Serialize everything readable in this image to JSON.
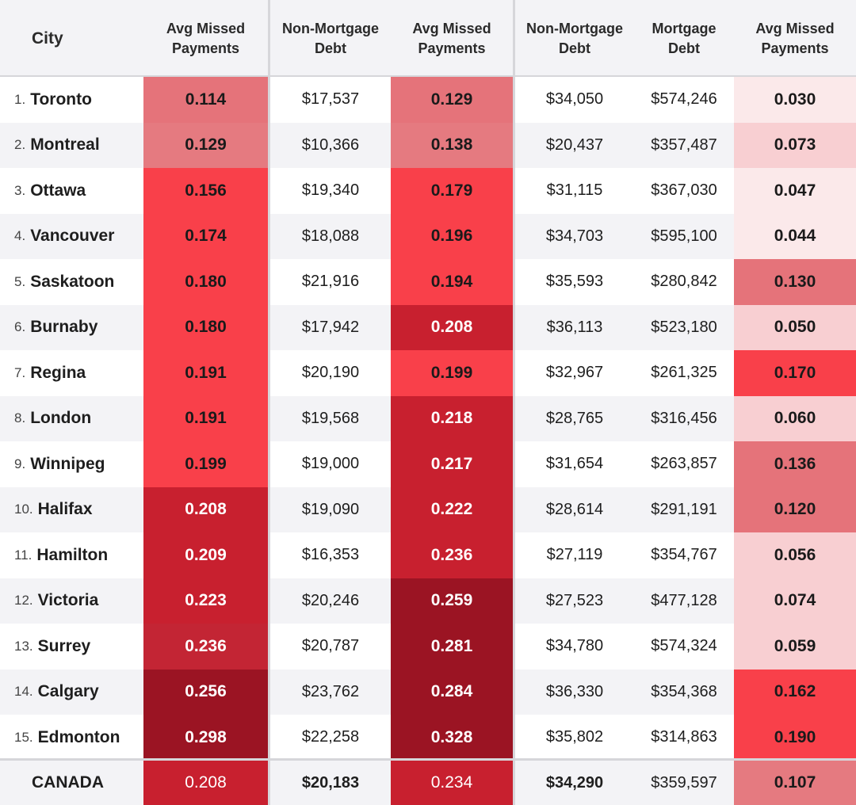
{
  "table": {
    "headers": {
      "city": "City",
      "avg_missed_1": [
        "Avg Missed",
        "Payments"
      ],
      "non_mortgage_1": [
        "Non-Mortgage",
        "Debt"
      ],
      "avg_missed_2": [
        "Avg Missed",
        "Payments"
      ],
      "non_mortgage_2": [
        "Non-Mortgage",
        "Debt"
      ],
      "mortgage": [
        "Mortgage",
        "Debt"
      ],
      "avg_missed_3": [
        "Avg Missed",
        "Payments"
      ]
    },
    "rows": [
      {
        "rank": "1.",
        "city": "Toronto",
        "amp1": "0.114",
        "nmd1": "$17,537",
        "amp2": "0.129",
        "nmd2": "$34,050",
        "md": "$574,246",
        "amp3": "0.030"
      },
      {
        "rank": "2.",
        "city": "Montreal",
        "amp1": "0.129",
        "nmd1": "$10,366",
        "amp2": "0.138",
        "nmd2": "$20,437",
        "md": "$357,487",
        "amp3": "0.073"
      },
      {
        "rank": "3.",
        "city": "Ottawa",
        "amp1": "0.156",
        "nmd1": "$19,340",
        "amp2": "0.179",
        "nmd2": "$31,115",
        "md": "$367,030",
        "amp3": "0.047"
      },
      {
        "rank": "4.",
        "city": "Vancouver",
        "amp1": "0.174",
        "nmd1": "$18,088",
        "amp2": "0.196",
        "nmd2": "$34,703",
        "md": "$595,100",
        "amp3": "0.044"
      },
      {
        "rank": "5.",
        "city": "Saskatoon",
        "amp1": "0.180",
        "nmd1": "$21,916",
        "amp2": "0.194",
        "nmd2": "$35,593",
        "md": "$280,842",
        "amp3": "0.130"
      },
      {
        "rank": "6.",
        "city": "Burnaby",
        "amp1": "0.180",
        "nmd1": "$17,942",
        "amp2": "0.208",
        "nmd2": "$36,113",
        "md": "$523,180",
        "amp3": "0.050"
      },
      {
        "rank": "7.",
        "city": "Regina",
        "amp1": "0.191",
        "nmd1": "$20,190",
        "amp2": "0.199",
        "nmd2": "$32,967",
        "md": "$261,325",
        "amp3": "0.170"
      },
      {
        "rank": "8.",
        "city": "London",
        "amp1": "0.191",
        "nmd1": "$19,568",
        "amp2": "0.218",
        "nmd2": "$28,765",
        "md": "$316,456",
        "amp3": "0.060"
      },
      {
        "rank": "9.",
        "city": "Winnipeg",
        "amp1": "0.199",
        "nmd1": "$19,000",
        "amp2": "0.217",
        "nmd2": "$31,654",
        "md": "$263,857",
        "amp3": "0.136"
      },
      {
        "rank": "10.",
        "city": "Halifax",
        "amp1": "0.208",
        "nmd1": "$19,090",
        "amp2": "0.222",
        "nmd2": "$28,614",
        "md": "$291,191",
        "amp3": "0.120"
      },
      {
        "rank": "11.",
        "city": "Hamilton",
        "amp1": "0.209",
        "nmd1": "$16,353",
        "amp2": "0.236",
        "nmd2": "$27,119",
        "md": "$354,767",
        "amp3": "0.056"
      },
      {
        "rank": "12.",
        "city": "Victoria",
        "amp1": "0.223",
        "nmd1": "$20,246",
        "amp2": "0.259",
        "nmd2": "$27,523",
        "md": "$477,128",
        "amp3": "0.074"
      },
      {
        "rank": "13.",
        "city": "Surrey",
        "amp1": "0.236",
        "nmd1": "$20,787",
        "amp2": "0.281",
        "nmd2": "$34,780",
        "md": "$574,324",
        "amp3": "0.059"
      },
      {
        "rank": "14.",
        "city": "Calgary",
        "amp1": "0.256",
        "nmd1": "$23,762",
        "amp2": "0.284",
        "nmd2": "$36,330",
        "md": "$354,368",
        "amp3": "0.162"
      },
      {
        "rank": "15.",
        "city": "Edmonton",
        "amp1": "0.298",
        "nmd1": "$22,258",
        "amp2": "0.328",
        "nmd2": "$35,802",
        "md": "$314,863",
        "amp3": "0.190"
      }
    ],
    "total": {
      "city": "CANADA",
      "amp1": "0.208",
      "nmd1": "$20,183",
      "amp2": "0.234",
      "nmd2": "$34,290",
      "md": "$359,597",
      "amp3": "0.107"
    }
  },
  "colors": {
    "row_odd": "#ffffff",
    "row_even": "#f3f3f6",
    "header_bg": "#f3f3f6",
    "divider": "#d6d6da",
    "heat_amp1": {
      "0.114": "#e5737a",
      "0.129": "#e57a80",
      "0.156": "#f9404a",
      "0.174": "#f9404a",
      "0.180": "#f9404a",
      "0.191": "#f9404a",
      "0.199": "#f9404a",
      "0.208": "#c8202f",
      "0.209": "#c8202f",
      "0.223": "#c8202f",
      "0.236": "#c32534",
      "0.256": "#9b1423",
      "0.298": "#9b1423"
    },
    "heat_amp2": {
      "0.129": "#e5737a",
      "0.138": "#e57a80",
      "0.179": "#f9404a",
      "0.196": "#f9404a",
      "0.194": "#f9404a",
      "0.208": "#c8202f",
      "0.199": "#f9404a",
      "0.218": "#c8202f",
      "0.217": "#c8202f",
      "0.222": "#c8202f",
      "0.236": "#c8202f",
      "0.259": "#9b1423",
      "0.281": "#9b1423",
      "0.284": "#9b1423",
      "0.328": "#9b1423",
      "0.234": "#c8202f"
    },
    "heat_amp3": {
      "0.030": "#fbe9ea",
      "0.073": "#f8cfd2",
      "0.047": "#fbe9ea",
      "0.044": "#fbe9ea",
      "0.130": "#e5737a",
      "0.050": "#f8cfd2",
      "0.170": "#f9404a",
      "0.060": "#f8cfd2",
      "0.136": "#e5737a",
      "0.120": "#e5737a",
      "0.056": "#f8cfd2",
      "0.074": "#f8cfd2",
      "0.059": "#f8cfd2",
      "0.162": "#f9404a",
      "0.190": "#f9404a",
      "0.107": "#e57a80"
    }
  }
}
